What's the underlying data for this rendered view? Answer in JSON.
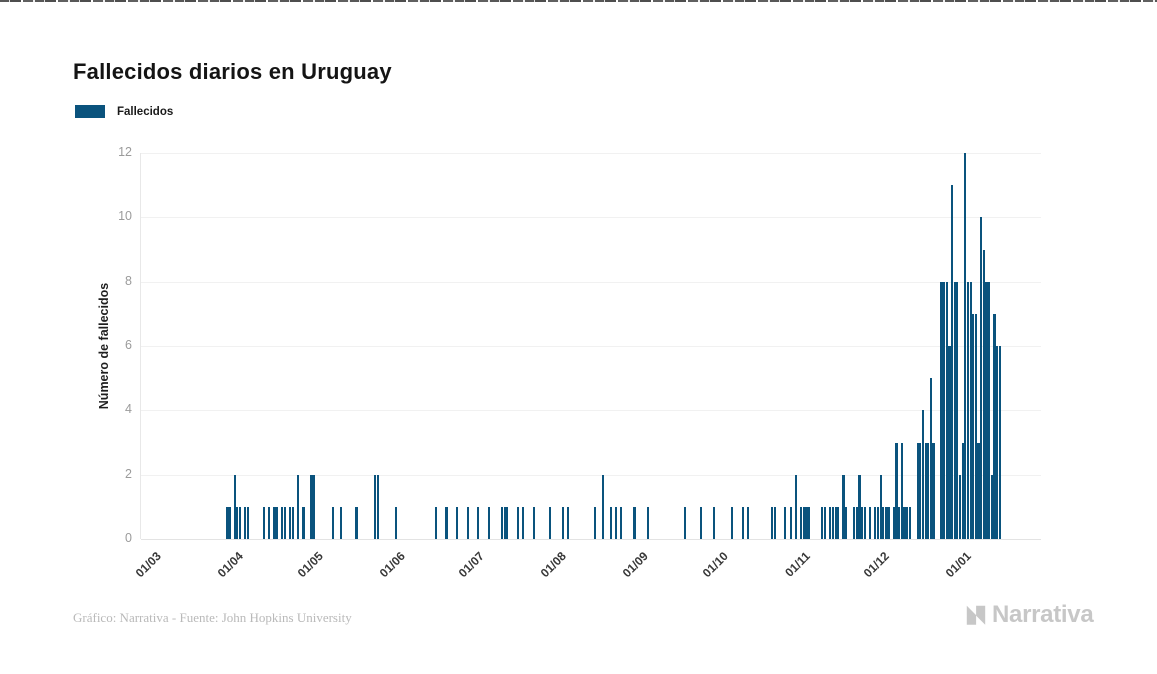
{
  "page": {
    "background": "#ffffff"
  },
  "title": "Fallecidos diarios en Uruguay",
  "legend": {
    "label": "Fallecidos",
    "swatch_color": "#0a537d"
  },
  "footer": {
    "credit": "Gráfico: Narrativa - Fuente: John Hopkins University"
  },
  "logo": {
    "text": "Narrativa",
    "color": "#c7c7c7"
  },
  "chart_data": {
    "type": "bar",
    "title": "Fallecidos diarios en Uruguay",
    "series_name": "Fallecidos",
    "bar_color": "#0a537d",
    "xlabel": "",
    "ylabel": "Número de fallecidos",
    "ylim": [
      0,
      12
    ],
    "y_ticks": [
      0,
      2,
      4,
      6,
      8,
      10,
      12
    ],
    "x_tick_labels": [
      "01/03",
      "01/04",
      "01/05",
      "01/06",
      "01/07",
      "01/08",
      "01/09",
      "01/10",
      "01/11",
      "01/12",
      "01/01"
    ],
    "x_range_note": "daily bars from 01/03/2020 to 14/01/2021, dates dd/mm",
    "grid": true,
    "legend_position": "top-left",
    "points": [
      [
        "28/03",
        1
      ],
      [
        "29/03",
        1
      ],
      [
        "31/03",
        2
      ],
      [
        "01/04",
        1
      ],
      [
        "02/04",
        1
      ],
      [
        "04/04",
        1
      ],
      [
        "05/04",
        1
      ],
      [
        "11/04",
        1
      ],
      [
        "13/04",
        1
      ],
      [
        "15/04",
        1
      ],
      [
        "16/04",
        1
      ],
      [
        "18/04",
        1
      ],
      [
        "19/04",
        1
      ],
      [
        "21/04",
        1
      ],
      [
        "22/04",
        1
      ],
      [
        "24/04",
        2
      ],
      [
        "26/04",
        1
      ],
      [
        "29/04",
        2
      ],
      [
        "30/04",
        2
      ],
      [
        "07/05",
        1
      ],
      [
        "10/05",
        1
      ],
      [
        "16/05",
        1
      ],
      [
        "23/05",
        2
      ],
      [
        "24/05",
        2
      ],
      [
        "31/05",
        1
      ],
      [
        "15/06",
        1
      ],
      [
        "19/06",
        1
      ],
      [
        "23/06",
        1
      ],
      [
        "27/06",
        1
      ],
      [
        "01/07",
        1
      ],
      [
        "05/07",
        1
      ],
      [
        "10/07",
        1
      ],
      [
        "11/07",
        1
      ],
      [
        "12/07",
        1
      ],
      [
        "16/07",
        1
      ],
      [
        "18/07",
        1
      ],
      [
        "22/07",
        1
      ],
      [
        "28/07",
        1
      ],
      [
        "02/08",
        1
      ],
      [
        "04/08",
        1
      ],
      [
        "14/08",
        1
      ],
      [
        "17/08",
        2
      ],
      [
        "20/08",
        1
      ],
      [
        "22/08",
        1
      ],
      [
        "24/08",
        1
      ],
      [
        "29/08",
        1
      ],
      [
        "03/09",
        1
      ],
      [
        "17/09",
        1
      ],
      [
        "23/09",
        1
      ],
      [
        "28/09",
        1
      ],
      [
        "05/10",
        1
      ],
      [
        "09/10",
        1
      ],
      [
        "11/10",
        1
      ],
      [
        "20/10",
        1
      ],
      [
        "21/10",
        1
      ],
      [
        "25/10",
        1
      ],
      [
        "27/10",
        1
      ],
      [
        "29/10",
        2
      ],
      [
        "31/10",
        1
      ],
      [
        "01/11",
        1
      ],
      [
        "02/11",
        1
      ],
      [
        "03/11",
        1
      ],
      [
        "08/11",
        1
      ],
      [
        "09/11",
        1
      ],
      [
        "11/11",
        1
      ],
      [
        "12/11",
        1
      ],
      [
        "13/11",
        1
      ],
      [
        "14/11",
        1
      ],
      [
        "16/11",
        2
      ],
      [
        "17/11",
        1
      ],
      [
        "20/11",
        1
      ],
      [
        "21/11",
        1
      ],
      [
        "22/11",
        2
      ],
      [
        "23/11",
        1
      ],
      [
        "24/11",
        1
      ],
      [
        "26/11",
        1
      ],
      [
        "28/11",
        1
      ],
      [
        "29/11",
        1
      ],
      [
        "30/11",
        2
      ],
      [
        "01/12",
        1
      ],
      [
        "02/12",
        1
      ],
      [
        "03/12",
        1
      ],
      [
        "05/12",
        1
      ],
      [
        "06/12",
        3
      ],
      [
        "07/12",
        1
      ],
      [
        "08/12",
        3
      ],
      [
        "09/12",
        1
      ],
      [
        "10/12",
        1
      ],
      [
        "11/12",
        1
      ],
      [
        "14/12",
        3
      ],
      [
        "15/12",
        3
      ],
      [
        "16/12",
        4
      ],
      [
        "17/12",
        3
      ],
      [
        "18/12",
        3
      ],
      [
        "19/12",
        5
      ],
      [
        "20/12",
        3
      ],
      [
        "23/12",
        8
      ],
      [
        "24/12",
        8
      ],
      [
        "25/12",
        8
      ],
      [
        "26/12",
        6
      ],
      [
        "27/12",
        11
      ],
      [
        "28/12",
        8
      ],
      [
        "29/12",
        8
      ],
      [
        "30/12",
        2
      ],
      [
        "31/12",
        3
      ],
      [
        "01/01",
        12
      ],
      [
        "02/01",
        8
      ],
      [
        "03/01",
        8
      ],
      [
        "04/01",
        7
      ],
      [
        "05/01",
        7
      ],
      [
        "06/01",
        3
      ],
      [
        "07/01",
        10
      ],
      [
        "08/01",
        9
      ],
      [
        "09/01",
        8
      ],
      [
        "10/01",
        8
      ],
      [
        "11/01",
        2
      ],
      [
        "12/01",
        7
      ],
      [
        "13/01",
        6
      ],
      [
        "14/01",
        6
      ]
    ]
  }
}
